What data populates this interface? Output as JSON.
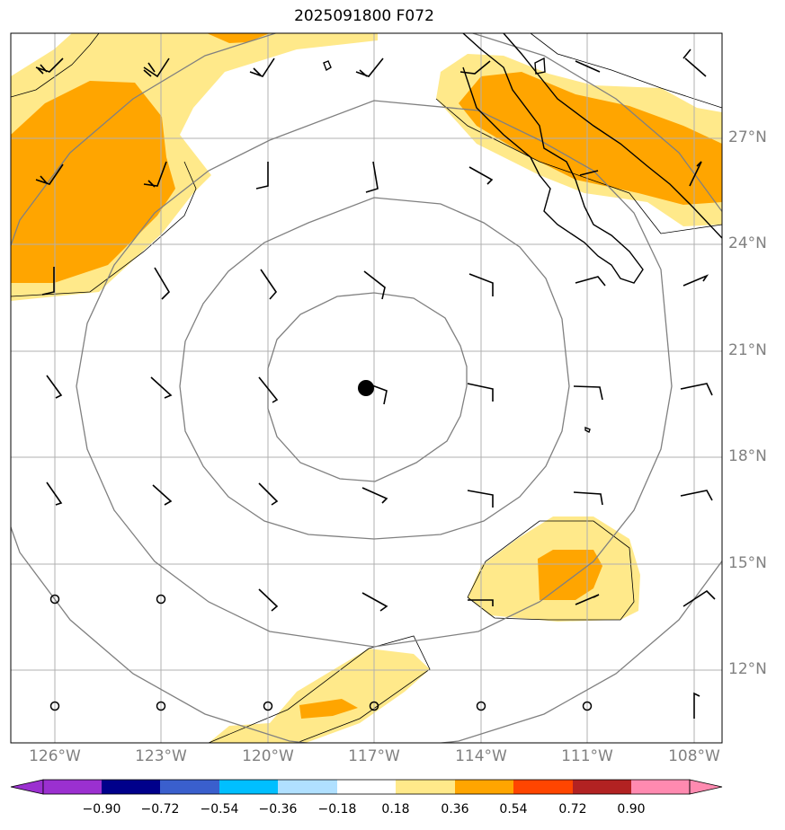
{
  "title": "2025091800 F072",
  "map": {
    "lon_range": [
      -127.5,
      -107.5
    ],
    "lat_range": [
      10,
      30
    ],
    "center": {
      "lon": -117.2,
      "lat": 19.9
    },
    "range_ring_count": 4,
    "gridlines": true,
    "lon_labels": [
      "126°W",
      "123°W",
      "120°W",
      "117°W",
      "114°W",
      "111°W",
      "108°W"
    ],
    "lon_values": [
      -126,
      -123,
      -120,
      -117,
      -114,
      -111,
      -108
    ],
    "lat_labels": [
      "27°N",
      "24°N",
      "21°N",
      "18°N",
      "15°N",
      "12°N"
    ],
    "lat_values": [
      27,
      24,
      21,
      18,
      15,
      12
    ],
    "colors": {
      "light_fill": "#ffe98a",
      "dark_fill": "#ffa500",
      "grid": "#b0b0b0",
      "ring": "#808080",
      "coast": "#000000",
      "center_dot": "#000000"
    }
  },
  "colorbar": {
    "ticks": [
      "−0.90",
      "−0.72",
      "−0.54",
      "−0.36",
      "−0.18",
      "0.18",
      "0.36",
      "0.54",
      "0.72",
      "0.90"
    ],
    "colors": [
      "#9b30d0",
      "#00008b",
      "#3a5fcd",
      "#00bfff",
      "#b0e0ff",
      "#ffffff",
      "#ffe98a",
      "#ffa500",
      "#ff4500",
      "#b22222",
      "#ff8ab0",
      "#ff8ab0"
    ]
  }
}
